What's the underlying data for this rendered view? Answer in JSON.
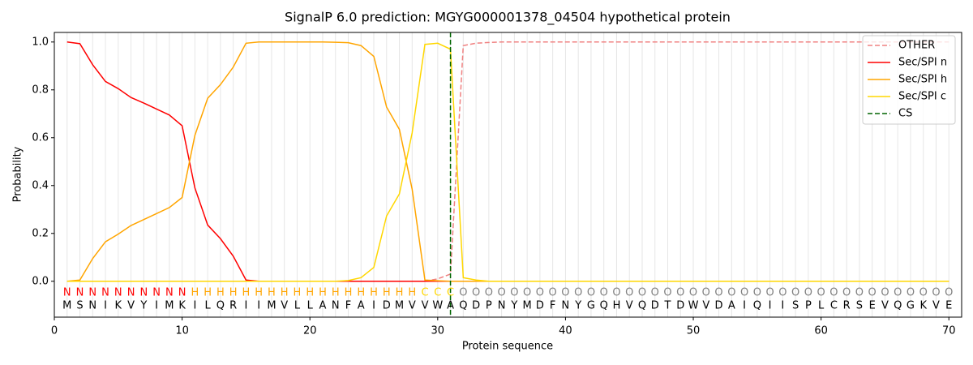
{
  "chart_data": {
    "type": "line",
    "title": "SignalP 6.0 prediction: MGYG000001378_04504 hypothetical protein",
    "x_label": "Protein sequence",
    "y_label": "Probability",
    "xlim": [
      0,
      71
    ],
    "ylim": [
      -0.15,
      1.04
    ],
    "xticks": [
      0,
      10,
      20,
      30,
      40,
      50,
      60,
      70
    ],
    "yticks": [
      {
        "value": 0,
        "label": "0.0"
      },
      {
        "value": 0.2,
        "label": "0.2"
      },
      {
        "value": 0.4,
        "label": "0.4"
      },
      {
        "value": 0.6,
        "label": "0.6"
      },
      {
        "value": 0.8,
        "label": "0.8"
      },
      {
        "value": 1,
        "label": "1.0"
      }
    ],
    "grid": true,
    "legend": "upper right",
    "x": [
      1,
      2,
      3,
      4,
      5,
      6,
      7,
      8,
      9,
      10,
      11,
      12,
      13,
      14,
      15,
      16,
      17,
      18,
      19,
      20,
      21,
      22,
      23,
      24,
      25,
      26,
      27,
      28,
      29,
      30,
      31,
      32,
      33,
      34,
      35,
      36,
      37,
      38,
      39,
      40,
      41,
      42,
      43,
      44,
      45,
      46,
      47,
      48,
      49,
      50,
      51,
      52,
      53,
      54,
      55,
      56,
      57,
      58,
      59,
      60,
      61,
      62,
      63,
      64,
      65,
      66,
      67,
      68,
      69,
      70
    ],
    "sequence": [
      "M",
      "S",
      "N",
      "I",
      "K",
      "V",
      "Y",
      "I",
      "M",
      "K",
      "I",
      "L",
      "Q",
      "R",
      "I",
      "I",
      "M",
      "V",
      "L",
      "L",
      "A",
      "N",
      "F",
      "A",
      "I",
      "D",
      "M",
      "V",
      "V",
      "W",
      "A",
      "Q",
      "D",
      "P",
      "N",
      "Y",
      "M",
      "D",
      "F",
      "N",
      "Y",
      "G",
      "Q",
      "H",
      "V",
      "Q",
      "D",
      "T",
      "D",
      "W",
      "V",
      "D",
      "A",
      "I",
      "Q",
      "I",
      "I",
      "S",
      "P",
      "L",
      "C",
      "R",
      "S",
      "E",
      "V",
      "Q",
      "G",
      "K",
      "V",
      "E"
    ],
    "regions": [
      "N",
      "N",
      "N",
      "N",
      "N",
      "N",
      "N",
      "N",
      "N",
      "N",
      "H",
      "H",
      "H",
      "H",
      "H",
      "H",
      "H",
      "H",
      "H",
      "H",
      "H",
      "H",
      "H",
      "H",
      "H",
      "H",
      "H",
      "H",
      "C",
      "C",
      "C",
      "O",
      "O",
      "O",
      "O",
      "O",
      "O",
      "O",
      "O",
      "O",
      "O",
      "O",
      "O",
      "O",
      "O",
      "O",
      "O",
      "O",
      "O",
      "O",
      "O",
      "O",
      "O",
      "O",
      "O",
      "O",
      "O",
      "O",
      "O",
      "O",
      "O",
      "O",
      "O",
      "O",
      "O",
      "O",
      "O",
      "O",
      "O",
      "O"
    ],
    "region_colors": {
      "N": "#ff0000",
      "H": "#ffa500",
      "C": "#ffd700",
      "O": "#808080"
    },
    "series": [
      {
        "name": "OTHER",
        "color": "#f08080",
        "dash": true,
        "values": [
          0,
          0,
          0,
          0,
          0,
          0,
          0,
          0,
          0,
          0,
          0,
          0,
          0,
          0,
          0,
          0,
          0,
          0,
          0,
          0,
          0,
          0,
          0,
          0,
          0,
          0,
          0,
          0,
          0,
          0.01,
          0.03,
          0.985,
          0.995,
          0.998,
          1,
          1,
          1,
          1,
          1,
          1,
          1,
          1,
          1,
          1,
          1,
          1,
          1,
          1,
          1,
          1,
          1,
          1,
          1,
          1,
          1,
          1,
          1,
          1,
          1,
          1,
          1,
          1,
          1,
          1,
          1,
          1,
          1,
          1,
          1,
          1
        ]
      },
      {
        "name": "Sec/SPI n",
        "color": "#ff0000",
        "values": [
          1,
          0.993,
          0.905,
          0.835,
          0.805,
          0.768,
          0.745,
          0.72,
          0.695,
          0.65,
          0.39,
          0.235,
          0.178,
          0.105,
          0.005,
          0,
          0,
          0,
          0,
          0,
          0,
          0,
          0,
          0,
          0,
          0,
          0,
          0,
          0,
          0,
          0,
          0,
          0,
          0,
          0,
          0,
          0,
          0,
          0,
          0,
          0,
          0,
          0,
          0,
          0,
          0,
          0,
          0,
          0,
          0,
          0,
          0,
          0,
          0,
          0,
          0,
          0,
          0,
          0,
          0,
          0,
          0,
          0,
          0,
          0,
          0,
          0,
          0,
          0,
          0
        ]
      },
      {
        "name": "Sec/SPI h",
        "color": "#ffa500",
        "values": [
          0,
          0.005,
          0.095,
          0.165,
          0.197,
          0.233,
          0.258,
          0.283,
          0.308,
          0.35,
          0.61,
          0.765,
          0.822,
          0.895,
          0.995,
          1,
          1,
          1,
          1,
          1,
          1,
          0.999,
          0.997,
          0.985,
          0.94,
          0.728,
          0.635,
          0.385,
          0.005,
          0.002,
          0,
          0,
          0,
          0,
          0,
          0,
          0,
          0,
          0,
          0,
          0,
          0,
          0,
          0,
          0,
          0,
          0,
          0,
          0,
          0,
          0,
          0,
          0,
          0,
          0,
          0,
          0,
          0,
          0,
          0,
          0,
          0,
          0,
          0,
          0,
          0,
          0,
          0,
          0,
          0
        ]
      },
      {
        "name": "Sec/SPI c",
        "color": "#ffd700",
        "values": [
          0,
          0,
          0,
          0,
          0,
          0,
          0,
          0,
          0,
          0,
          0,
          0,
          0,
          0,
          0,
          0,
          0,
          0,
          0,
          0,
          0,
          0,
          0.003,
          0.015,
          0.058,
          0.273,
          0.365,
          0.62,
          0.99,
          0.995,
          0.97,
          0.015,
          0.005,
          0,
          0,
          0,
          0,
          0,
          0,
          0,
          0,
          0,
          0,
          0,
          0,
          0,
          0,
          0,
          0,
          0,
          0,
          0,
          0,
          0,
          0,
          0,
          0,
          0,
          0,
          0,
          0,
          0,
          0,
          0,
          0,
          0,
          0,
          0,
          0,
          0
        ]
      }
    ],
    "cs": {
      "name": "CS",
      "x": 31,
      "color": "#006400"
    }
  }
}
